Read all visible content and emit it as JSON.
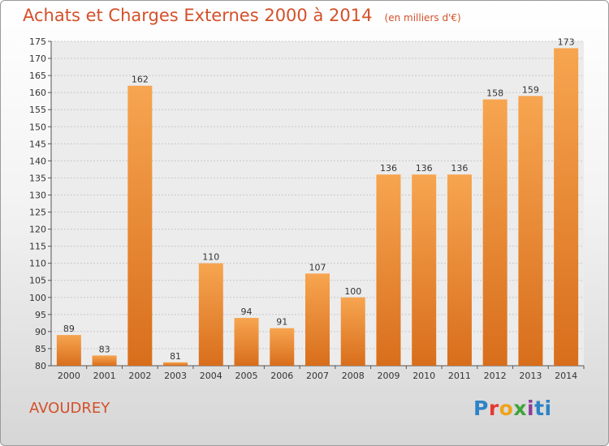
{
  "title": "Achats et Charges Externes 2000 à 2014",
  "unit_label": "(en milliers d'€)",
  "town": "AVOUDREY",
  "logo": [
    "P",
    "r",
    "o",
    "x",
    "i",
    "ti"
  ],
  "colors": {
    "bar_light": "#f7a550",
    "bar_dark": "#d86e1c",
    "title": "#d4502a"
  },
  "chart_data": {
    "type": "bar",
    "categories": [
      "2000",
      "2001",
      "2002",
      "2003",
      "2004",
      "2005",
      "2006",
      "2007",
      "2008",
      "2009",
      "2010",
      "2011",
      "2012",
      "2013",
      "2014"
    ],
    "values": [
      89,
      83,
      162,
      81,
      110,
      94,
      91,
      107,
      100,
      136,
      136,
      136,
      158,
      159,
      173
    ],
    "ylim": [
      80,
      175
    ],
    "yticks": [
      80,
      85,
      90,
      95,
      100,
      105,
      110,
      115,
      120,
      125,
      130,
      135,
      140,
      145,
      150,
      155,
      160,
      165,
      170,
      175
    ],
    "grid": true,
    "xlabel": "",
    "ylabel": ""
  }
}
